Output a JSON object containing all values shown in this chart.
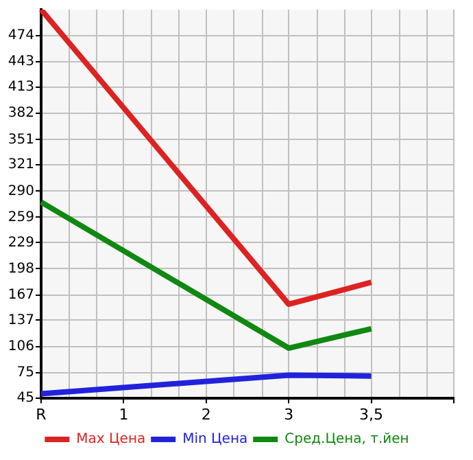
{
  "chart_data": {
    "type": "line",
    "categories": [
      "R",
      "1",
      "2",
      "3",
      "3,5",
      null
    ],
    "series": [
      {
        "name": "Max Цена",
        "color": "#dd2222",
        "values": [
          505,
          null,
          null,
          156,
          182,
          null
        ]
      },
      {
        "name": "Min Цена",
        "color": "#2222dd",
        "values": [
          50,
          null,
          null,
          72,
          71,
          null
        ]
      },
      {
        "name": "Сред.Цена, т.йен",
        "color": "#118811",
        "values": [
          277,
          null,
          null,
          104,
          127,
          null
        ]
      }
    ],
    "ylim": [
      45,
      505
    ],
    "yticks": [
      45,
      75,
      106,
      137,
      167,
      198,
      229,
      259,
      290,
      321,
      351,
      382,
      413,
      443,
      474
    ],
    "grid": true,
    "legend": "bottom",
    "marker": "none",
    "line_style": "solid"
  }
}
